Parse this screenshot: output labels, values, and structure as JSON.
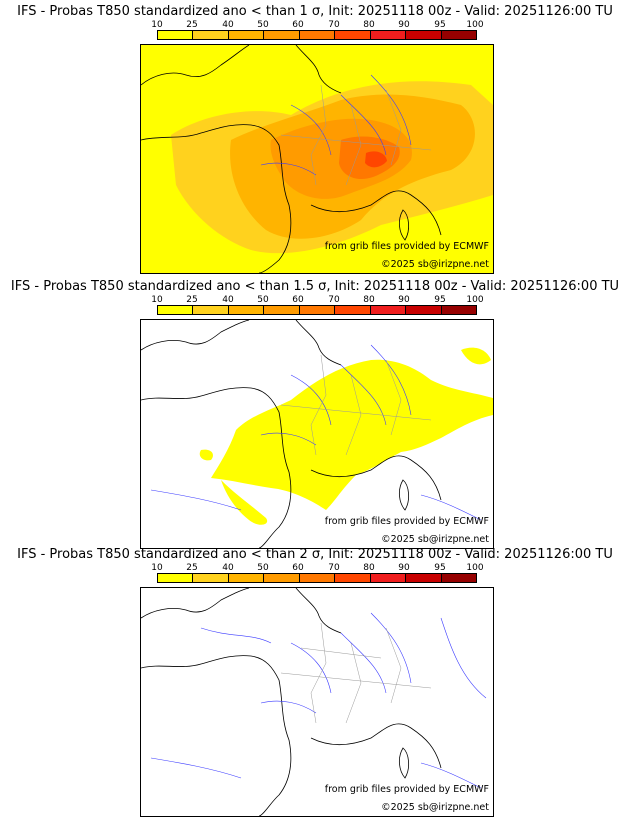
{
  "legend": {
    "ticks": [
      "10",
      "25",
      "40",
      "50",
      "60",
      "70",
      "80",
      "90",
      "95",
      "100"
    ],
    "colors": [
      "#ffff00",
      "#ffd21e",
      "#ffb400",
      "#ff9b00",
      "#ff7800",
      "#ff4600",
      "#f01e1e",
      "#c80000",
      "#960000",
      "#5a0000"
    ]
  },
  "colors": {
    "coast": "#000000",
    "rivers": "#3b3bff",
    "borders": "#9a9a9a"
  },
  "panels": [
    {
      "title": "IFS - Probas T850  standardized ano < than 1 σ, Init: 20251118 00z - Valid: 20251126:00 TU",
      "credit_source": "from grib files provided by ECMWF",
      "credit_copyright": "©2025 sb@irizpne.net",
      "probability_coverage": "widespread",
      "max_class_percent": 80
    },
    {
      "title": "IFS - Probas T850  standardized ano < than 1.5 σ, Init: 20251118 00z - Valid: 20251126:00 TU",
      "credit_source": "from grib files provided by ECMWF",
      "credit_copyright": "©2025 sb@irizpne.net",
      "probability_coverage": "partial",
      "max_class_percent": 25
    },
    {
      "title": "IFS - Probas T850  standardized ano < than 2 σ, Init: 20251118 00z - Valid: 20251126:00 TU",
      "credit_source": "from grib files provided by ECMWF",
      "credit_copyright": "©2025 sb@irizpne.net",
      "probability_coverage": "none",
      "max_class_percent": 0
    }
  ]
}
